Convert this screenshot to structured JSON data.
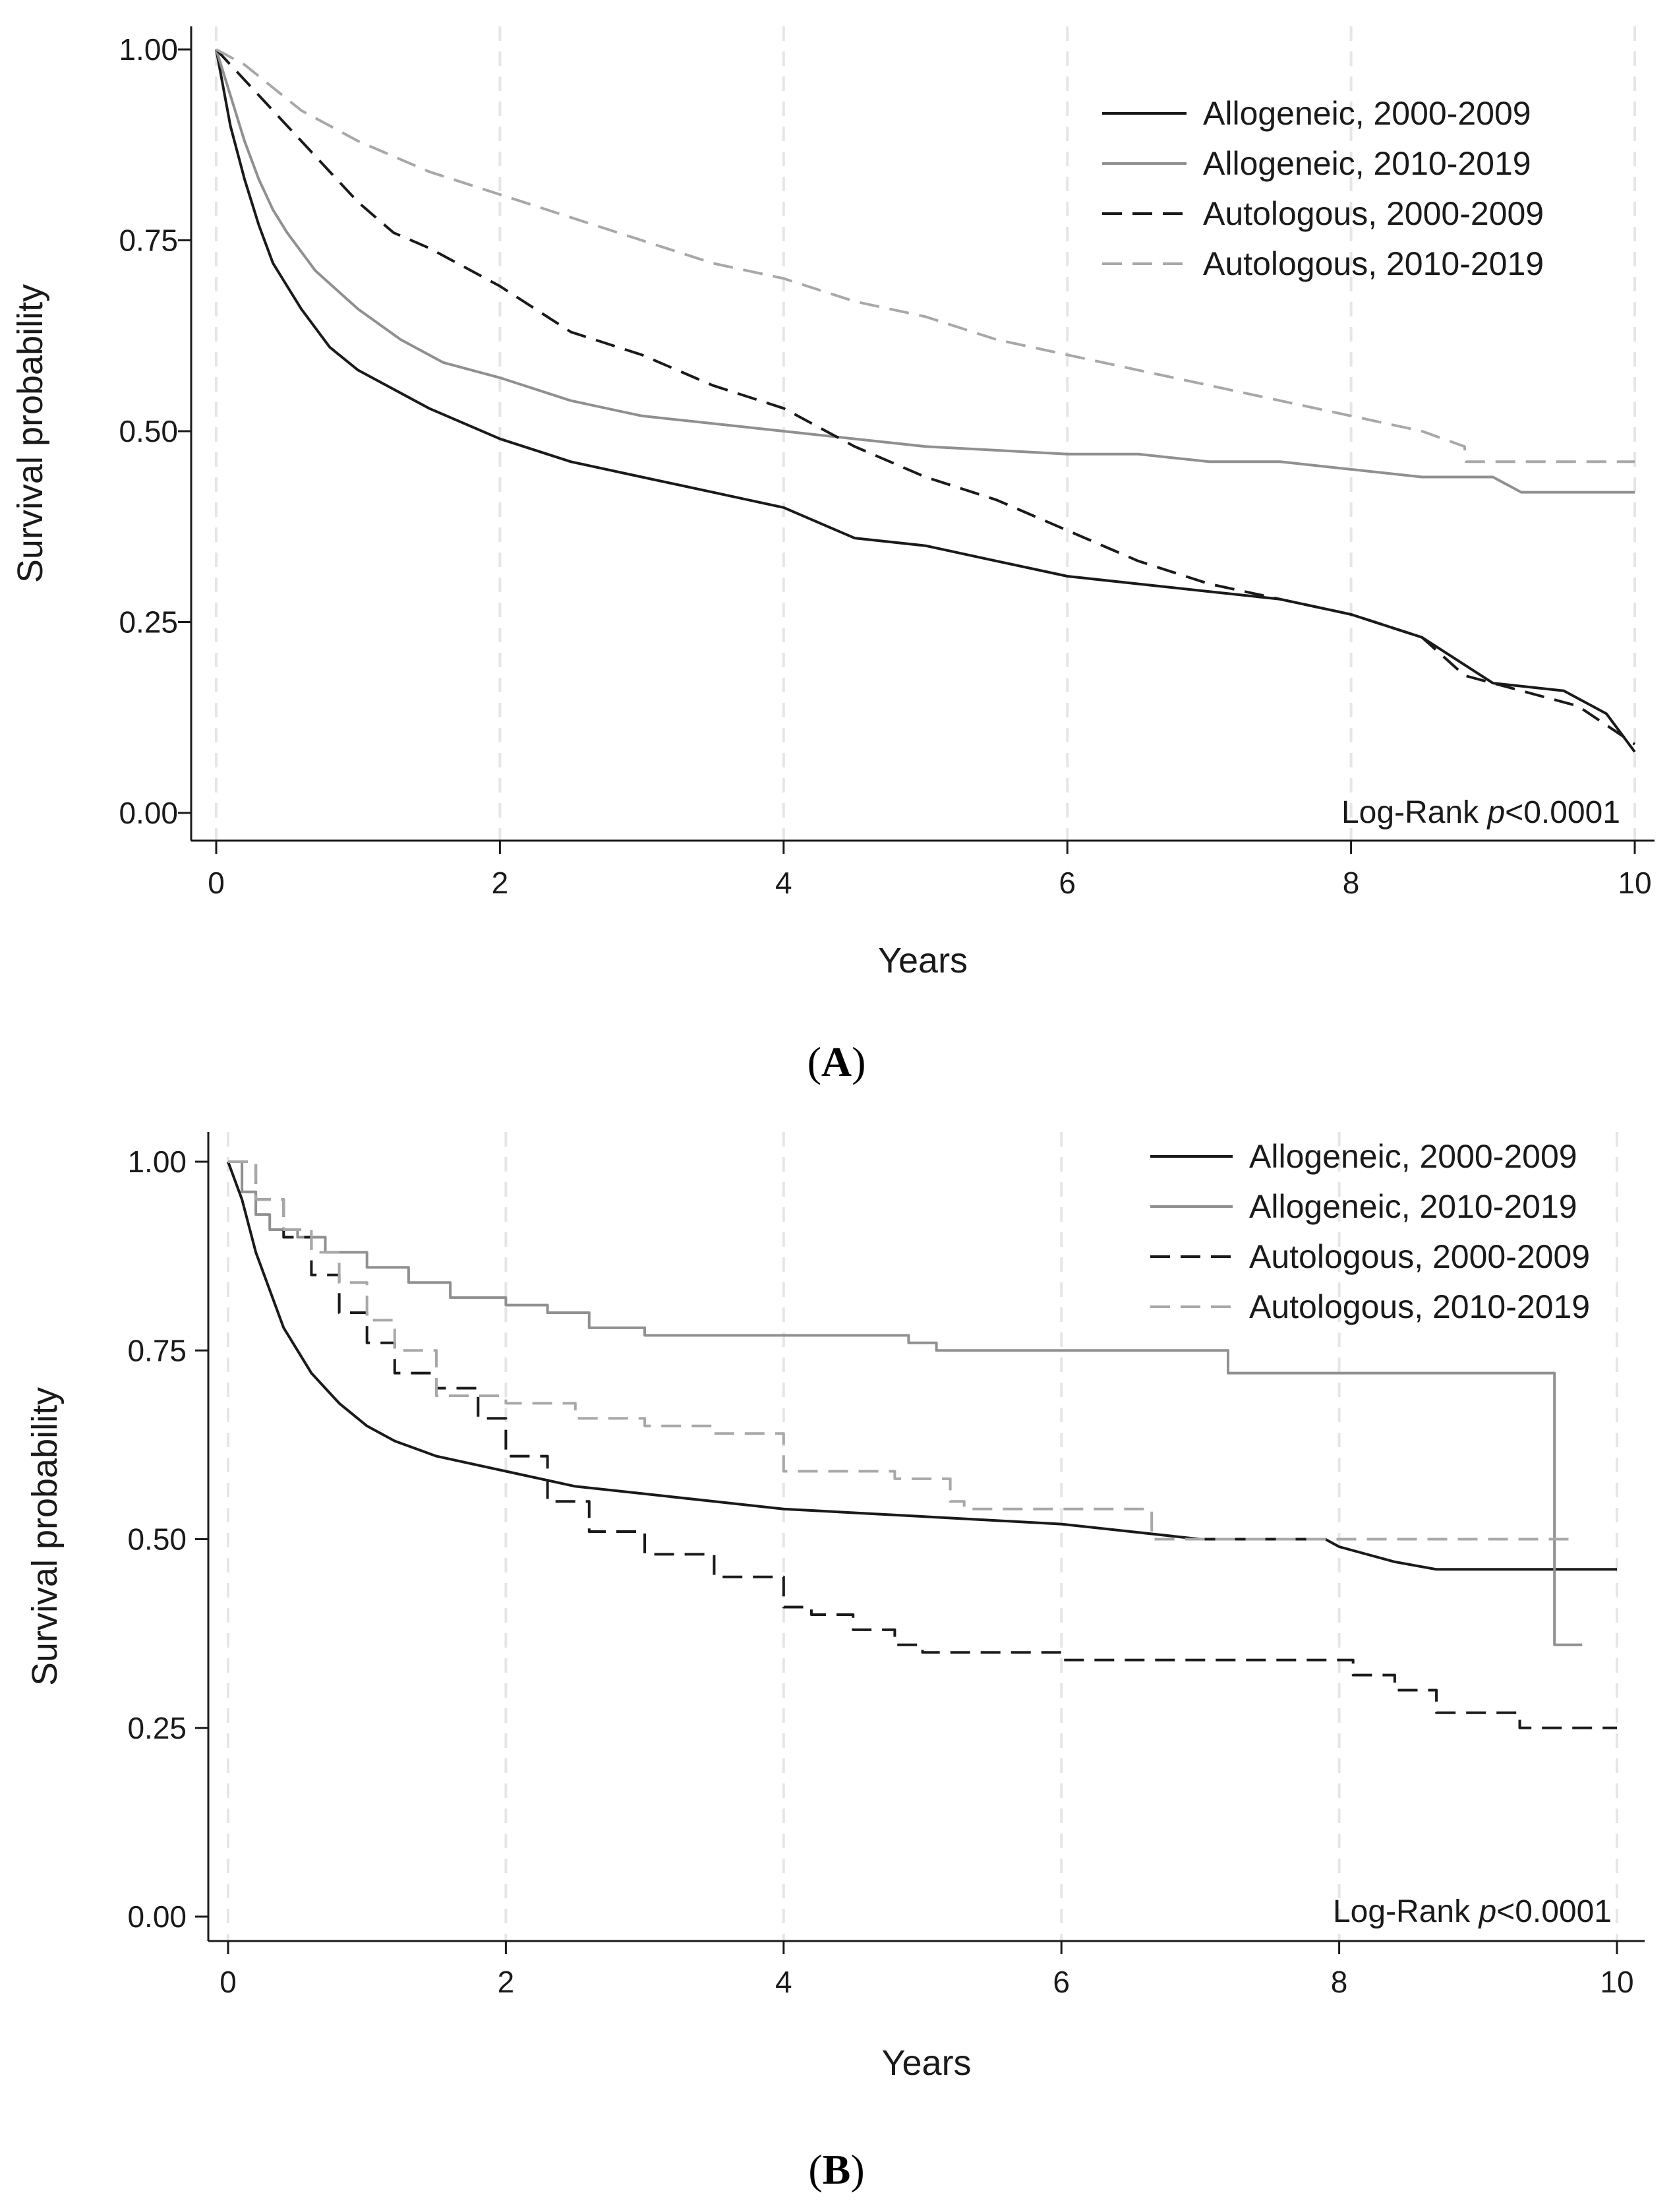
{
  "chart_data": [
    {
      "type": "line",
      "panel_label": "A",
      "xlabel": "Years",
      "ylabel": "Survival probability",
      "xlim": [
        0,
        10
      ],
      "ylim": [
        0,
        1
      ],
      "x_ticks": [
        "0",
        "2",
        "4",
        "6",
        "8",
        "10"
      ],
      "y_ticks": [
        "0.00",
        "0.25",
        "0.50",
        "0.75",
        "1.00"
      ],
      "grid": "vertical dashed",
      "legend_position": "top-right",
      "annotation": {
        "prefix": "Log-Rank ",
        "italic": "p",
        "suffix": "<0.0001"
      },
      "series": [
        {
          "name": "Allogeneic, 2000-2009",
          "color": "#1a1a1a",
          "dashed": false,
          "step": false,
          "x": [
            0,
            0.1,
            0.2,
            0.3,
            0.4,
            0.5,
            0.6,
            0.8,
            1,
            1.2,
            1.5,
            2,
            2.5,
            3,
            3.5,
            4,
            4.5,
            5,
            5.5,
            6,
            6.5,
            7,
            7.5,
            8,
            8.5,
            9,
            9.5,
            9.8,
            10
          ],
          "y": [
            1.0,
            0.9,
            0.83,
            0.77,
            0.72,
            0.69,
            0.66,
            0.61,
            0.58,
            0.56,
            0.53,
            0.49,
            0.46,
            0.44,
            0.42,
            0.4,
            0.36,
            0.35,
            0.33,
            0.31,
            0.3,
            0.29,
            0.28,
            0.26,
            0.23,
            0.17,
            0.16,
            0.13,
            0.08
          ]
        },
        {
          "name": "Allogeneic, 2010-2019",
          "color": "#909090",
          "dashed": false,
          "step": false,
          "x": [
            0,
            0.1,
            0.2,
            0.3,
            0.4,
            0.5,
            0.7,
            1,
            1.3,
            1.6,
            2,
            2.5,
            3,
            3.5,
            4,
            4.5,
            5,
            6,
            6.5,
            7,
            7.5,
            8,
            8.5,
            9,
            9.2,
            10
          ],
          "y": [
            1.0,
            0.94,
            0.88,
            0.83,
            0.79,
            0.76,
            0.71,
            0.66,
            0.62,
            0.59,
            0.57,
            0.54,
            0.52,
            0.51,
            0.5,
            0.49,
            0.48,
            0.47,
            0.47,
            0.46,
            0.46,
            0.45,
            0.44,
            0.44,
            0.42,
            0.42
          ]
        },
        {
          "name": "Autologous, 2000-2009",
          "color": "#1a1a1a",
          "dashed": true,
          "step": false,
          "x": [
            0,
            0.25,
            0.5,
            0.75,
            1,
            1.25,
            1.5,
            2,
            2.5,
            3,
            3.5,
            4,
            4.5,
            5,
            5.5,
            6,
            6.5,
            7,
            7.5,
            8,
            8.5,
            8.8,
            9.2,
            9.6,
            10
          ],
          "y": [
            1.0,
            0.95,
            0.9,
            0.85,
            0.8,
            0.76,
            0.74,
            0.69,
            0.63,
            0.6,
            0.56,
            0.53,
            0.48,
            0.44,
            0.41,
            0.37,
            0.33,
            0.3,
            0.28,
            0.26,
            0.23,
            0.18,
            0.16,
            0.14,
            0.09
          ]
        },
        {
          "name": "Autologous, 2010-2019",
          "color": "#a8a8a8",
          "dashed": true,
          "step": false,
          "x": [
            0,
            0.2,
            0.4,
            0.6,
            0.8,
            1,
            1.5,
            2,
            2.5,
            3,
            3.5,
            4,
            4.5,
            5,
            5.5,
            6,
            6.5,
            7,
            7.5,
            8,
            8.5,
            8.8,
            8.81,
            9,
            10
          ],
          "y": [
            1.0,
            0.98,
            0.95,
            0.92,
            0.9,
            0.88,
            0.84,
            0.81,
            0.78,
            0.75,
            0.72,
            0.7,
            0.67,
            0.65,
            0.62,
            0.6,
            0.58,
            0.56,
            0.54,
            0.52,
            0.5,
            0.48,
            0.46,
            0.46,
            0.46
          ]
        }
      ]
    },
    {
      "type": "line",
      "panel_label": "B",
      "xlabel": "Years",
      "ylabel": "Survival probability",
      "xlim": [
        0,
        10
      ],
      "ylim": [
        0,
        1
      ],
      "x_ticks": [
        "0",
        "2",
        "4",
        "6",
        "8",
        "10"
      ],
      "y_ticks": [
        "0.00",
        "0.25",
        "0.50",
        "0.75",
        "1.00"
      ],
      "grid": "vertical dashed",
      "legend_position": "top-right",
      "annotation": {
        "prefix": "Log-Rank ",
        "italic": "p",
        "suffix": "<0.0001"
      },
      "series": [
        {
          "name": "Allogeneic, 2000-2009",
          "color": "#1a1a1a",
          "dashed": false,
          "step": false,
          "x": [
            0,
            0.1,
            0.2,
            0.3,
            0.4,
            0.5,
            0.6,
            0.8,
            1,
            1.2,
            1.5,
            2,
            2.5,
            3,
            3.5,
            4,
            5,
            6,
            7,
            7.9,
            8,
            8.4,
            8.7,
            10
          ],
          "y": [
            1.0,
            0.95,
            0.88,
            0.83,
            0.78,
            0.75,
            0.72,
            0.68,
            0.65,
            0.63,
            0.61,
            0.59,
            0.57,
            0.56,
            0.55,
            0.54,
            0.53,
            0.52,
            0.5,
            0.5,
            0.49,
            0.47,
            0.46,
            0.46
          ]
        },
        {
          "name": "Allogeneic, 2010-2019",
          "color": "#909090",
          "dashed": false,
          "step": true,
          "x": [
            0,
            0.1,
            0.2,
            0.3,
            0.5,
            0.7,
            1,
            1.3,
            1.6,
            2,
            2.3,
            2.6,
            3,
            3.5,
            4,
            4.9,
            5.1,
            7.2,
            9.55,
            9.75
          ],
          "y": [
            1.0,
            0.96,
            0.93,
            0.91,
            0.9,
            0.88,
            0.86,
            0.84,
            0.82,
            0.81,
            0.8,
            0.78,
            0.77,
            0.77,
            0.77,
            0.76,
            0.75,
            0.72,
            0.36,
            0.36
          ]
        },
        {
          "name": "Autologous, 2000-2009",
          "color": "#1a1a1a",
          "dashed": true,
          "step": true,
          "x": [
            0,
            0.2,
            0.4,
            0.6,
            0.8,
            1,
            1.2,
            1.5,
            1.8,
            2,
            2.3,
            2.6,
            3,
            3.5,
            4,
            4.2,
            4.5,
            4.8,
            5,
            5.5,
            6,
            7.8,
            8.1,
            8.4,
            8.7,
            9.3,
            10
          ],
          "y": [
            1.0,
            0.95,
            0.9,
            0.85,
            0.8,
            0.76,
            0.72,
            0.7,
            0.66,
            0.61,
            0.55,
            0.51,
            0.48,
            0.45,
            0.41,
            0.4,
            0.38,
            0.36,
            0.35,
            0.35,
            0.34,
            0.34,
            0.32,
            0.3,
            0.27,
            0.25,
            0.25
          ]
        },
        {
          "name": "Autologous, 2010-2019",
          "color": "#a8a8a8",
          "dashed": true,
          "step": true,
          "x": [
            0,
            0.2,
            0.4,
            0.6,
            0.8,
            1,
            1.2,
            1.5,
            2,
            2.5,
            3,
            3.5,
            4,
            4.8,
            5.2,
            5.3,
            6.6,
            6.65,
            9.7
          ],
          "y": [
            1.0,
            0.95,
            0.91,
            0.88,
            0.84,
            0.79,
            0.75,
            0.69,
            0.68,
            0.66,
            0.65,
            0.64,
            0.59,
            0.58,
            0.55,
            0.54,
            0.54,
            0.5,
            0.5
          ]
        }
      ]
    }
  ]
}
